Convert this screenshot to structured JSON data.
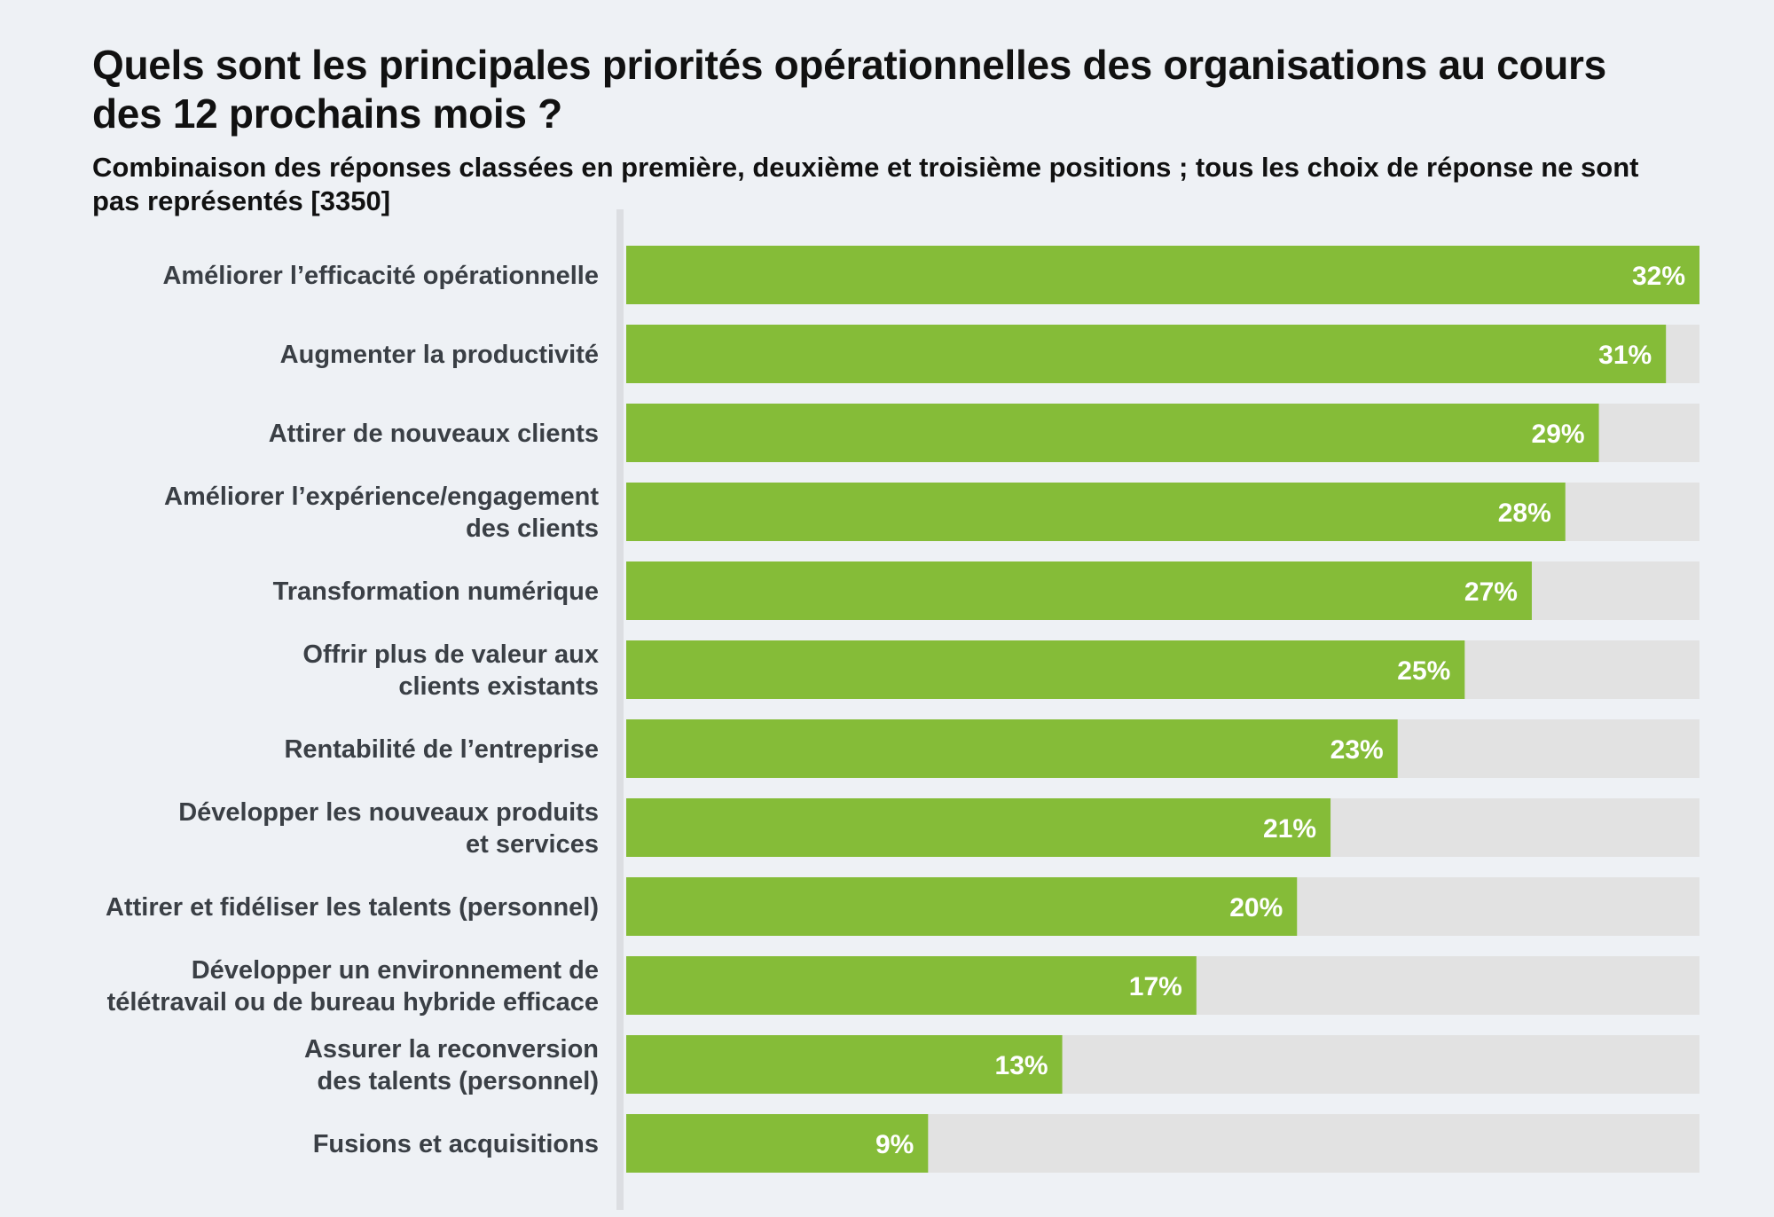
{
  "chart_data": {
    "type": "bar",
    "orientation": "horizontal",
    "title": "Quels sont les principales priorités opérationnelles des organisations au cours des 12 prochains mois ?",
    "subtitle": "Combinaison des réponses classées en première, deuxième et troisième positions ; tous les choix de réponse ne sont pas représentés [3350]",
    "xlim": [
      0,
      32
    ],
    "grid": false,
    "categories": [
      [
        "Améliorer l’efficacité opérationnelle"
      ],
      [
        "Augmenter la productivité"
      ],
      [
        "Attirer de nouveaux clients"
      ],
      [
        "Améliorer l’expérience/engagement",
        "des clients"
      ],
      [
        "Transformation numérique"
      ],
      [
        "Offrir plus de valeur aux",
        "clients existants"
      ],
      [
        "Rentabilité de l’entreprise"
      ],
      [
        "Développer les nouveaux produits",
        "et services"
      ],
      [
        "Attirer et fidéliser les talents (personnel)"
      ],
      [
        "Développer un environnement de",
        "télétravail ou de bureau hybride efficace"
      ],
      [
        "Assurer la reconversion",
        "des talents (personnel)"
      ],
      [
        "Fusions et acquisitions"
      ]
    ],
    "values": [
      32,
      31,
      29,
      28,
      27,
      25,
      23,
      21,
      20,
      17,
      13,
      9
    ],
    "value_labels": [
      "32%",
      "31%",
      "29%",
      "28%",
      "27%",
      "25%",
      "23%",
      "21%",
      "20%",
      "17%",
      "13%",
      "9%"
    ],
    "colors": {
      "bar": "#85bc38",
      "track": "#e2e2e2",
      "background": "#eef1f5",
      "divider": "#dcdee2",
      "category_text": "#3a3f45",
      "value_text": "#ffffff"
    }
  }
}
